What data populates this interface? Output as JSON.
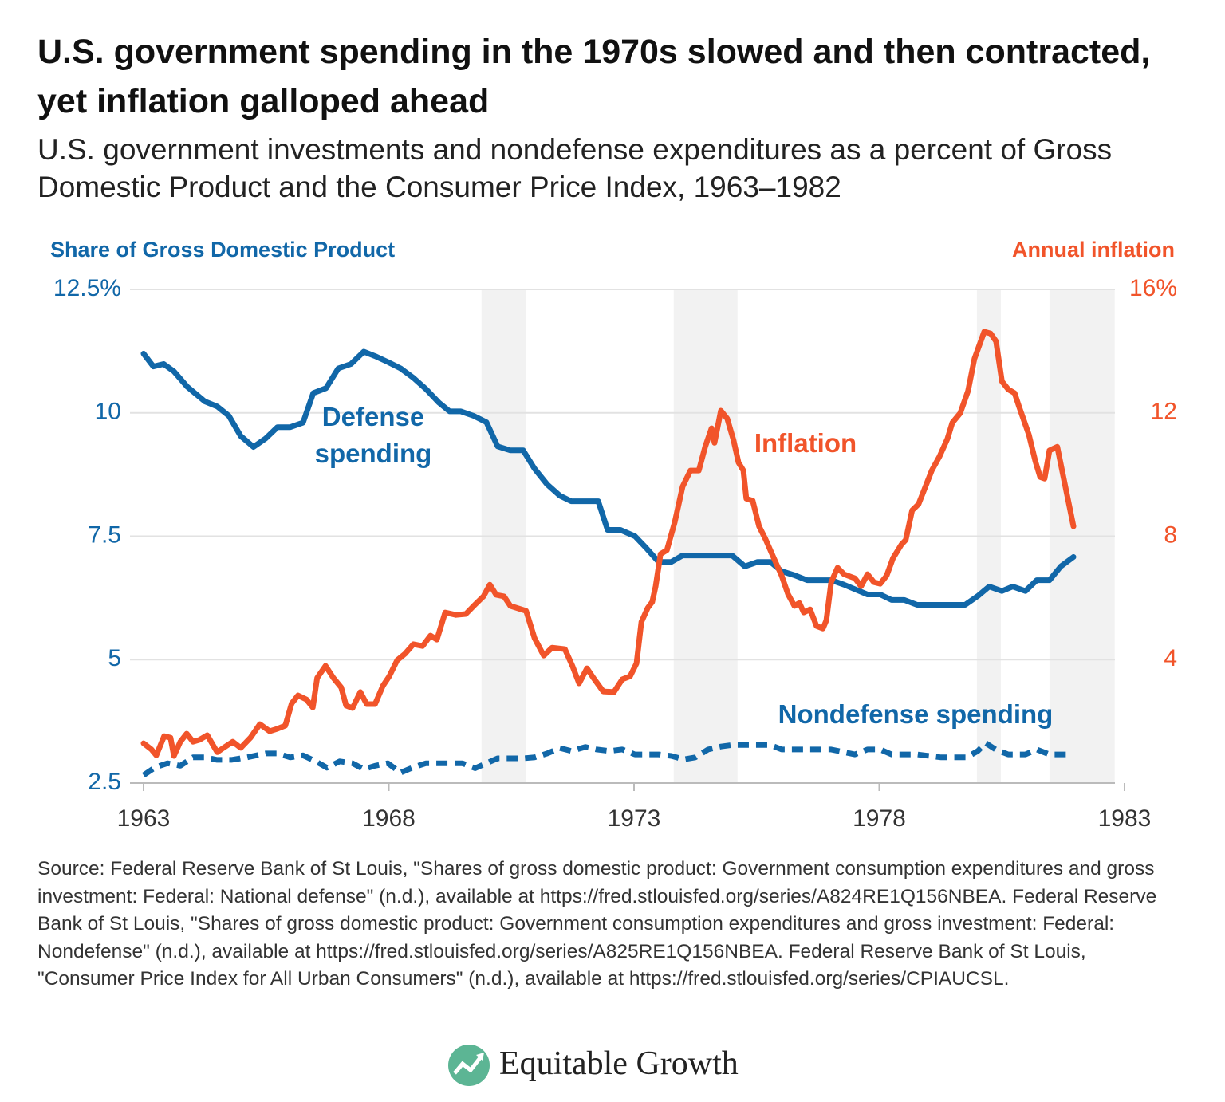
{
  "chart_data": {
    "type": "line",
    "title": "U.S. government spending in the 1970s slowed and then contracted, yet inflation galloped ahead",
    "subtitle": "U.S. government investments and nondefense expenditures as a percent of Gross Domestic Product and the Consumer Price Index, 1963–1982",
    "y_label": "Share of Gross Domestic Product",
    "y2_label": "Annual inflation",
    "source": "Source: Federal Reserve Bank of St Louis, \"Shares of gross domestic product: Government consumption expenditures and gross investment: Federal: National defense\" (n.d.), available at https://fred.stlouisfed.org/series/A824RE1Q156NBEA. Federal Reserve Bank of St Louis, \"Shares of gross domestic product: Government consumption expenditures and gross investment: Federal: Nondefense\" (n.d.), available at https://fred.stlouisfed.org/series/A825RE1Q156NBEA. Federal Reserve Bank of St Louis, \"Consumer Price Index for All Urban Consumers\" (n.d.), available at https://fred.stlouisfed.org/series/CPIAUCSL.",
    "logo": "Equitable Growth",
    "xlim": [
      1963,
      1983
    ],
    "xticks": [
      1963,
      1968,
      1973,
      1978,
      1983
    ],
    "ylim": [
      2.5,
      12.5
    ],
    "yticks": [
      2.5,
      5,
      7.5,
      10,
      {
        "value": 12.5,
        "label": "12.5%"
      }
    ],
    "y2lim": [
      0,
      16
    ],
    "y2ticks": [
      4,
      8,
      12,
      {
        "value": 16,
        "label": "16%"
      }
    ],
    "grid": true,
    "recessions": [
      [
        1969.89,
        1970.8
      ],
      [
        1973.81,
        1975.11
      ],
      [
        1979.99,
        1980.48
      ],
      [
        1981.47,
        1982.8
      ]
    ],
    "recession_color": "#f2f2f2",
    "series": [
      {
        "name": "Defense spending",
        "color": "#1167a8",
        "dashed": false,
        "axis": "y",
        "x": [
          1963,
          1963.2,
          1963.41,
          1963.62,
          1963.89,
          1964.25,
          1964.5,
          1964.74,
          1964.98,
          1965.24,
          1965.49,
          1965.73,
          1965.99,
          1966.25,
          1966.46,
          1966.72,
          1966.97,
          1967.23,
          1967.49,
          1967.72,
          1967.98,
          1968.24,
          1968.5,
          1968.76,
          1969.02,
          1969.24,
          1969.47,
          1969.73,
          1969.99,
          1970.22,
          1970.48,
          1970.74,
          1970.97,
          1971.23,
          1971.49,
          1971.72,
          1972.01,
          1972.27,
          1972.46,
          1972.72,
          1973.02,
          1973.24,
          1973.5,
          1973.76,
          1973.99,
          1974.54,
          1975,
          1975.26,
          1975.52,
          1975.78,
          1976.01,
          1976.27,
          1976.53,
          1977.02,
          1977.28,
          1977.76,
          1978.02,
          1978.25,
          1978.51,
          1978.77,
          1979.75,
          1980.01,
          1980.24,
          1980.5,
          1980.72,
          1980.98,
          1981.21,
          1981.47,
          1981.7,
          1981.96
        ],
        "values": [
          11.2,
          10.94,
          10.99,
          10.84,
          10.53,
          10.23,
          10.13,
          9.94,
          9.53,
          9.31,
          9.48,
          9.71,
          9.71,
          9.8,
          10.4,
          10.5,
          10.9,
          10.99,
          11.24,
          11.15,
          11.03,
          10.9,
          10.71,
          10.48,
          10.21,
          10.03,
          10.03,
          9.94,
          9.81,
          9.32,
          9.24,
          9.24,
          8.87,
          8.55,
          8.32,
          8.21,
          8.21,
          8.21,
          7.63,
          7.63,
          7.5,
          7.27,
          6.98,
          6.98,
          7.11,
          7.11,
          7.11,
          6.89,
          6.98,
          6.98,
          6.79,
          6.71,
          6.61,
          6.61,
          6.52,
          6.32,
          6.32,
          6.21,
          6.21,
          6.11,
          6.11,
          6.29,
          6.48,
          6.39,
          6.48,
          6.39,
          6.61,
          6.61,
          6.89,
          7.08
        ]
      },
      {
        "name": "Nondefense spending",
        "color": "#1167a8",
        "dashed": true,
        "axis": "y",
        "x": [
          1963,
          1963.24,
          1963.49,
          1963.75,
          1964.01,
          1964.25,
          1964.5,
          1964.79,
          1965.11,
          1965.49,
          1965.73,
          1965.99,
          1966.25,
          1966.51,
          1966.74,
          1967,
          1967.26,
          1967.49,
          1967.72,
          1967.98,
          1968.24,
          1968.5,
          1968.76,
          1968.98,
          1969.5,
          1969.76,
          1969.99,
          1970.22,
          1970.48,
          1970.74,
          1970.97,
          1971.23,
          1971.49,
          1971.72,
          1972.01,
          1972.24,
          1972.5,
          1972.76,
          1973.02,
          1973.5,
          1973.76,
          1974.02,
          1974.25,
          1974.51,
          1974.77,
          1975,
          1975.52,
          1975.78,
          1976.01,
          1977.02,
          1977.5,
          1977.76,
          1978.02,
          1978.25,
          1978.77,
          1979.26,
          1979.78,
          1980.01,
          1980.17,
          1980.37,
          1980.63,
          1980.98,
          1981.21,
          1981.47,
          1981.96
        ],
        "values": [
          2.66,
          2.82,
          2.9,
          2.85,
          3.02,
          3.02,
          2.97,
          2.97,
          3.02,
          3.1,
          3.1,
          3.02,
          3.06,
          2.94,
          2.81,
          2.94,
          2.9,
          2.78,
          2.85,
          2.9,
          2.71,
          2.82,
          2.9,
          2.9,
          2.9,
          2.8,
          2.9,
          3.0,
          3.0,
          3.0,
          3.02,
          3.1,
          3.21,
          3.15,
          3.23,
          3.18,
          3.15,
          3.18,
          3.08,
          3.08,
          3.05,
          2.98,
          3.02,
          3.18,
          3.24,
          3.27,
          3.27,
          3.27,
          3.18,
          3.18,
          3.08,
          3.18,
          3.18,
          3.08,
          3.08,
          3.02,
          3.02,
          3.15,
          3.31,
          3.18,
          3.08,
          3.08,
          3.18,
          3.08,
          3.08
        ]
      },
      {
        "name": "Inflation",
        "color": "#f1542a",
        "dashed": false,
        "axis": "y2",
        "x": [
          1963,
          1963.16,
          1963.26,
          1963.42,
          1963.55,
          1963.62,
          1963.75,
          1963.88,
          1964.01,
          1964.14,
          1964.3,
          1964.5,
          1964.63,
          1964.82,
          1964.98,
          1965.18,
          1965.37,
          1965.57,
          1965.73,
          1965.89,
          1966.02,
          1966.15,
          1966.32,
          1966.45,
          1966.54,
          1966.71,
          1966.87,
          1967.03,
          1967.13,
          1967.26,
          1967.42,
          1967.55,
          1967.72,
          1967.88,
          1968.01,
          1968.17,
          1968.33,
          1968.5,
          1968.69,
          1968.85,
          1968.98,
          1969.15,
          1969.37,
          1969.57,
          1969.73,
          1969.93,
          1970.06,
          1970.19,
          1970.35,
          1970.48,
          1970.8,
          1970.97,
          1971.16,
          1971.33,
          1971.59,
          1971.75,
          1971.88,
          1972.04,
          1972.17,
          1972.37,
          1972.59,
          1972.76,
          1972.92,
          1973.05,
          1973.15,
          1973.28,
          1973.37,
          1973.44,
          1973.54,
          1973.67,
          1973.83,
          1973.99,
          1974.15,
          1974.32,
          1974.45,
          1974.58,
          1974.64,
          1974.77,
          1974.9,
          1975.03,
          1975.13,
          1975.23,
          1975.29,
          1975.42,
          1975.55,
          1975.68,
          1975.85,
          1976.01,
          1976.14,
          1976.27,
          1976.37,
          1976.46,
          1976.59,
          1976.72,
          1976.85,
          1976.92,
          1977.02,
          1977.15,
          1977.28,
          1977.5,
          1977.63,
          1977.76,
          1977.89,
          1978.02,
          1978.15,
          1978.28,
          1978.45,
          1978.54,
          1978.67,
          1978.8,
          1978.93,
          1979.07,
          1979.23,
          1979.39,
          1979.49,
          1979.65,
          1979.81,
          1979.94,
          1980.14,
          1980.27,
          1980.38,
          1980.5,
          1980.63,
          1980.76,
          1980.85,
          1981.05,
          1981.18,
          1981.28,
          1981.37,
          1981.47,
          1981.63,
          1981.96
        ],
        "values": [
          1.29,
          1.09,
          0.9,
          1.52,
          1.47,
          0.88,
          1.34,
          1.6,
          1.34,
          1.4,
          1.55,
          1.0,
          1.14,
          1.34,
          1.14,
          1.47,
          1.91,
          1.68,
          1.76,
          1.86,
          2.58,
          2.84,
          2.71,
          2.45,
          3.41,
          3.8,
          3.41,
          3.1,
          2.51,
          2.43,
          2.95,
          2.56,
          2.56,
          3.15,
          3.46,
          3.98,
          4.19,
          4.5,
          4.44,
          4.78,
          4.65,
          5.53,
          5.45,
          5.48,
          5.74,
          6.05,
          6.43,
          6.1,
          6.05,
          5.74,
          5.58,
          4.7,
          4.13,
          4.39,
          4.34,
          3.77,
          3.23,
          3.72,
          3.41,
          2.97,
          2.95,
          3.36,
          3.46,
          3.88,
          5.22,
          5.68,
          5.87,
          6.38,
          7.42,
          7.55,
          8.45,
          9.61,
          10.13,
          10.13,
          10.9,
          11.5,
          11.03,
          12.07,
          11.81,
          11.11,
          10.39,
          10.13,
          9.22,
          9.15,
          8.32,
          7.91,
          7.29,
          6.72,
          6.12,
          5.74,
          5.84,
          5.53,
          5.63,
          5.09,
          5.01,
          5.27,
          6.51,
          6.98,
          6.77,
          6.64,
          6.38,
          6.77,
          6.51,
          6.46,
          6.72,
          7.29,
          7.73,
          7.88,
          8.84,
          9.04,
          9.56,
          10.13,
          10.59,
          11.16,
          11.68,
          11.99,
          12.71,
          13.75,
          14.63,
          14.57,
          14.32,
          13.02,
          12.76,
          12.64,
          12.2,
          11.29,
          10.44,
          9.92,
          9.87,
          10.78,
          10.9,
          8.32
        ]
      }
    ]
  }
}
